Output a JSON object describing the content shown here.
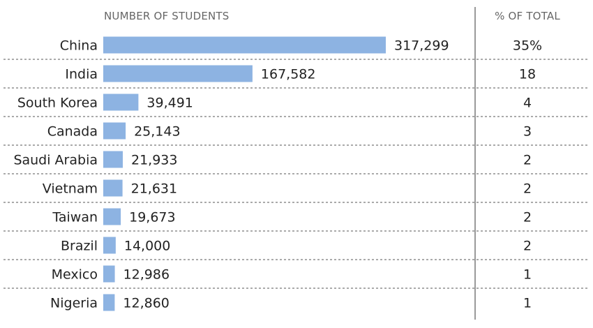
{
  "chart_data": {
    "type": "bar",
    "orientation": "horizontal",
    "header_number": "NUMBER OF STUDENTS",
    "header_pct": "% OF TOTAL",
    "categories": [
      "China",
      "India",
      "South Korea",
      "Canada",
      "Saudi Arabia",
      "Vietnam",
      "Taiwan",
      "Brazil",
      "Mexico",
      "Nigeria"
    ],
    "values": [
      317299,
      167582,
      39491,
      25143,
      21933,
      21631,
      19673,
      14000,
      12986,
      12860
    ],
    "value_labels": [
      "317,299",
      "167,582",
      "39,491",
      "25,143",
      "21,933",
      "21,631",
      "19,673",
      "14,000",
      "12,986",
      "12,860"
    ],
    "percent_labels": [
      "35%",
      "18",
      "4",
      "3",
      "2",
      "2",
      "2",
      "2",
      "1",
      "1"
    ],
    "bar_color": "#8DB3E2",
    "grid": false
  }
}
